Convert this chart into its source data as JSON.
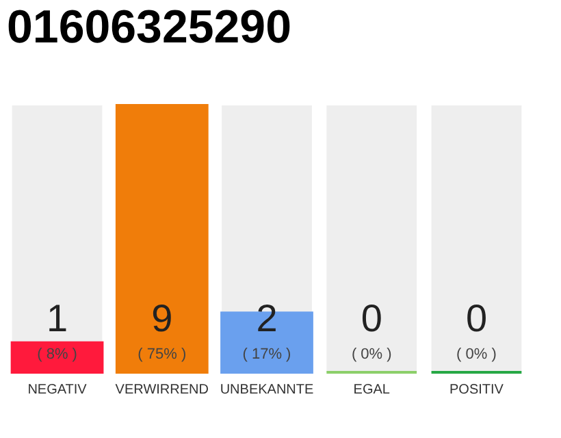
{
  "chart_data": {
    "type": "bar",
    "title": "01606325290",
    "categories": [
      "NEGATIV",
      "VERWIRREND",
      "UNBEKANNTE",
      "EGAL",
      "POSITIV"
    ],
    "values": [
      1,
      9,
      2,
      0,
      0
    ],
    "colors": [
      "#ff1a3c",
      "#f07d0a",
      "#6aa0ee",
      "#8ccf6a",
      "#27a845"
    ],
    "ylim": [
      0,
      9
    ],
    "data_labels": true,
    "tick_labels": "x",
    "grid": false,
    "annotations": [
      "( 8% )",
      "( 75% )",
      "( 17% )",
      "( 0% )",
      "( 0% )"
    ]
  }
}
